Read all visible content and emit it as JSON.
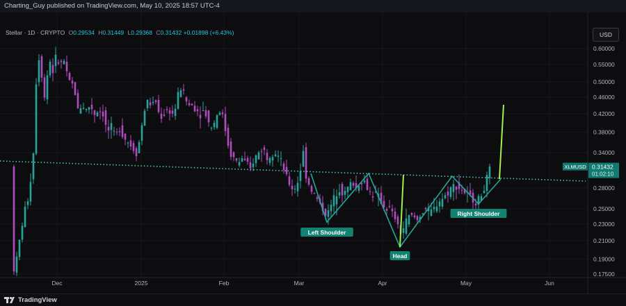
{
  "header": {
    "title": "Charting_Guy published on TradingView.com, May 10, 2025 18:57 UTC-4"
  },
  "symbol_bar": {
    "symbol": "Stellar · 1D · CRYPTO",
    "o_label": "O",
    "o": "0.29534",
    "h_label": "H",
    "h": "0.31449",
    "l_label": "L",
    "l": "0.29368",
    "c_label": "C",
    "c": "0.31432",
    "change": "+0.01898 (+6.43%)"
  },
  "currency_button": "USD",
  "price_axis": {
    "ticks": [
      "0.60000",
      "0.55000",
      "0.50000",
      "0.46000",
      "0.42000",
      "0.38000",
      "0.34000",
      "0.28000",
      "0.25000",
      "0.23000",
      "0.21000",
      "0.19000",
      "0.17500"
    ]
  },
  "time_axis": {
    "ticks": [
      "Dec",
      "2025",
      "Feb",
      "Mar",
      "Apr",
      "May",
      "Jun"
    ]
  },
  "price_tag": {
    "symbol": "XLMUSD",
    "price": "0.31432",
    "countdown": "01:02:10"
  },
  "annotations": {
    "left_shoulder": "Left Shoulder",
    "head": "Head",
    "right_shoulder": "Right Shoulder"
  },
  "colors": {
    "up": "#26a69a",
    "down": "#b34bc0",
    "pattern": "#26a69a",
    "projection": "#a5f04a",
    "neckline": "#4ec9b0",
    "label_bg": "#128273"
  },
  "footer": {
    "brand": "TradingView"
  },
  "chart_data": {
    "type": "candlestick",
    "y_scale": "log",
    "ylim": [
      0.17,
      0.65
    ],
    "neckline": "dotted trendline through shoulders",
    "pattern_points": [
      {
        "date": "2025-03-01",
        "price": 0.29
      },
      {
        "date": "2025-03-12",
        "price": 0.23
      },
      {
        "date": "2025-03-25",
        "price": 0.29
      },
      {
        "date": "2025-04-06",
        "price": 0.2
      },
      {
        "date": "2025-04-29",
        "price": 0.29
      },
      {
        "date": "2025-05-07",
        "price": 0.255
      },
      {
        "date": "2025-05-12",
        "price": 0.29
      }
    ],
    "projection_lines": [
      {
        "from": {
          "date": "2025-04-06",
          "price": 0.2
        },
        "to": {
          "date": "2025-04-07",
          "price": 0.29
        }
      },
      {
        "from": {
          "date": "2025-05-12",
          "price": 0.29
        },
        "to": {
          "date": "2025-05-14",
          "price": 0.44
        }
      }
    ]
  }
}
